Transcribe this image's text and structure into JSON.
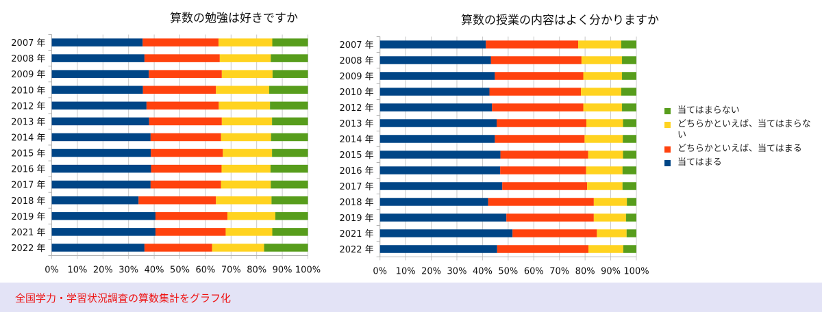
{
  "colors": {
    "atehamaru": "#004586",
    "dochiraka_atehamaru": "#ff420e",
    "dochiraka_atehamaranai": "#ffd320",
    "atehamaranai": "#579d1c"
  },
  "legend": [
    {
      "label": "当てはまらない",
      "color": "#579d1c"
    },
    {
      "label": "どちらかといえば、当てはまらない",
      "color": "#ffd320"
    },
    {
      "label": "どちらかといえば、当てはまる",
      "color": "#ff420e"
    },
    {
      "label": "当てはまる",
      "color": "#004586"
    }
  ],
  "footer": {
    "text": "全国学力・学習状況調査の算数集計をグラフ化"
  },
  "chart_data": [
    {
      "type": "bar",
      "orientation": "horizontal",
      "stacked": "percent",
      "title": "算数の勉強は好きですか",
      "categories": [
        "2007 年",
        "2008 年",
        "2009 年",
        "2010 年",
        "2012 年",
        "2013 年",
        "2014 年",
        "2015 年",
        "2016 年",
        "2017 年",
        "2018 年",
        "2019 年",
        "2021 年",
        "2022 年"
      ],
      "x_ticks": [
        "0%",
        "10%",
        "20%",
        "30%",
        "40%",
        "50%",
        "60%",
        "70%",
        "80%",
        "90%",
        "100%"
      ],
      "xlim": [
        0,
        100
      ],
      "grid": true,
      "series": [
        {
          "name": "当てはまる",
          "color": "#004586",
          "values": [
            35.5,
            36.2,
            37.9,
            35.6,
            37.0,
            38.0,
            38.6,
            38.7,
            38.8,
            38.6,
            33.9,
            40.5,
            40.5,
            36.2
          ]
        },
        {
          "name": "どちらかといえば、当てはまる",
          "color": "#ff420e",
          "values": [
            29.6,
            29.4,
            28.5,
            28.5,
            28.2,
            28.4,
            27.5,
            28.1,
            27.5,
            27.5,
            30.2,
            28.1,
            27.4,
            26.4
          ]
        },
        {
          "name": "どちらかといえば、当てはまらない",
          "color": "#ffd320",
          "values": [
            21.0,
            19.9,
            19.8,
            20.8,
            20.0,
            19.6,
            19.5,
            19.2,
            19.1,
            19.4,
            21.7,
            18.7,
            18.2,
            20.3
          ]
        },
        {
          "name": "当てはまらない",
          "color": "#579d1c",
          "values": [
            13.9,
            14.5,
            13.8,
            15.1,
            14.8,
            14.0,
            14.4,
            14.0,
            14.6,
            14.5,
            14.2,
            12.7,
            13.9,
            17.1
          ]
        }
      ]
    },
    {
      "type": "bar",
      "orientation": "horizontal",
      "stacked": "percent",
      "title": "算数の授業の内容はよく分かりますか",
      "categories": [
        "2007 年",
        "2008 年",
        "2009 年",
        "2010 年",
        "2012 年",
        "2013 年",
        "2014 年",
        "2015 年",
        "2016 年",
        "2017 年",
        "2018 年",
        "2019 年",
        "2021 年",
        "2022 年"
      ],
      "x_ticks": [
        "0%",
        "10%",
        "20%",
        "30%",
        "40%",
        "50%",
        "60%",
        "70%",
        "80%",
        "90%",
        "100%"
      ],
      "xlim": [
        0,
        100
      ],
      "grid": true,
      "legend_position": "right",
      "series": [
        {
          "name": "当てはまる",
          "color": "#004586",
          "values": [
            41.3,
            43.3,
            44.8,
            42.7,
            43.7,
            45.5,
            44.8,
            47.0,
            46.9,
            47.7,
            42.2,
            49.3,
            51.7,
            45.7
          ]
        },
        {
          "name": "どちらかといえば、当てはまる",
          "color": "#ff420e",
          "values": [
            36.0,
            35.3,
            34.5,
            35.7,
            35.6,
            35.0,
            35.0,
            34.2,
            33.5,
            33.1,
            41.2,
            34.1,
            32.9,
            35.6
          ]
        },
        {
          "name": "どちらかといえば、当てはまらない",
          "color": "#ffd320",
          "values": [
            16.8,
            15.8,
            15.1,
            15.7,
            15.1,
            14.3,
            14.9,
            13.6,
            14.2,
            13.8,
            12.9,
            12.6,
            11.6,
            13.6
          ]
        },
        {
          "name": "当てはまらない",
          "color": "#579d1c",
          "values": [
            5.9,
            5.6,
            5.6,
            5.9,
            5.6,
            5.2,
            5.3,
            5.2,
            5.4,
            5.4,
            3.7,
            4.0,
            3.8,
            5.1
          ]
        }
      ]
    }
  ]
}
